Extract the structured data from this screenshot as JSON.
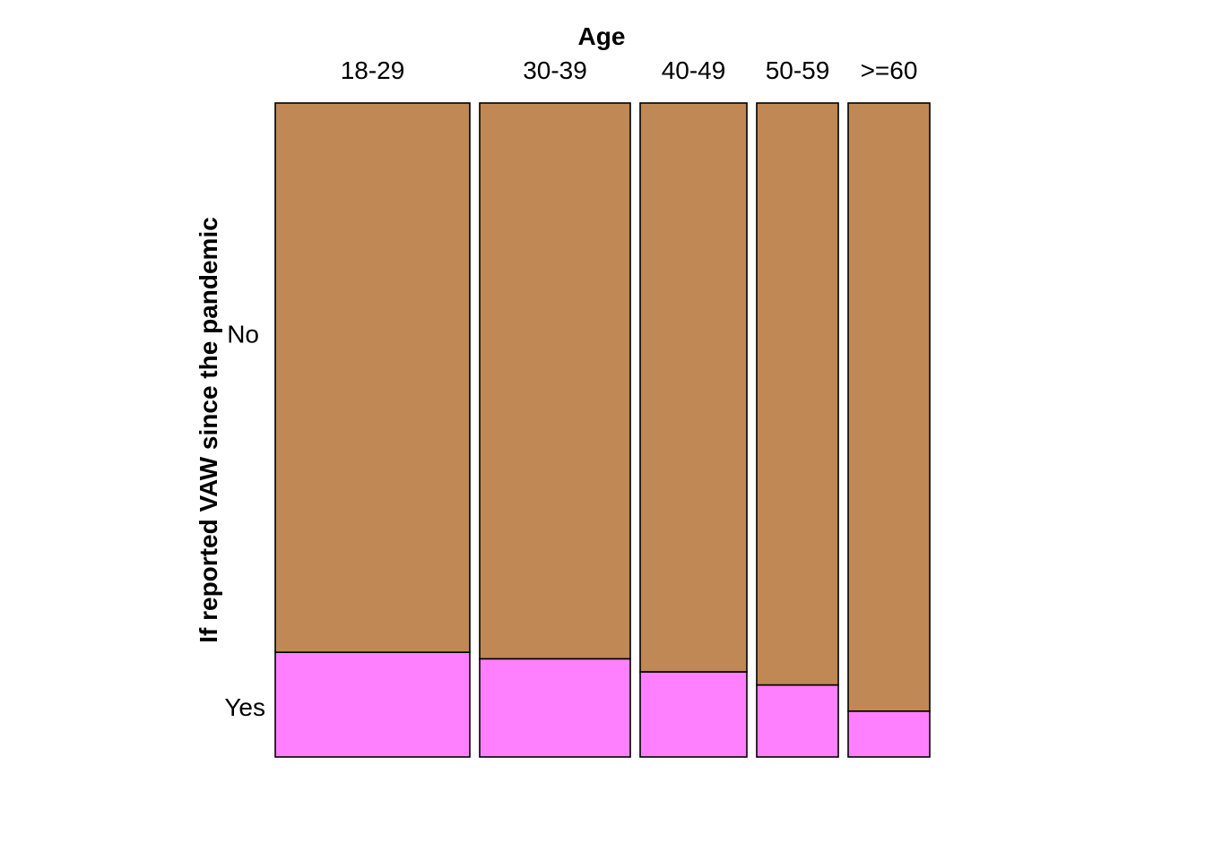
{
  "chart_data": {
    "type": "mosaic",
    "title": "",
    "xlabel": "Age",
    "ylabel": "If reported VAW since the pandemic",
    "categories": [
      "18-29",
      "30-39",
      "40-49",
      "50-59",
      ">=60"
    ],
    "column_share": [
      0.31,
      0.24,
      0.17,
      0.13,
      0.13
    ],
    "response_levels": [
      "No",
      "Yes"
    ],
    "series": [
      {
        "name": "No",
        "values": [
          0.84,
          0.85,
          0.87,
          0.89,
          0.93
        ]
      },
      {
        "name": "Yes",
        "values": [
          0.16,
          0.15,
          0.13,
          0.11,
          0.07
        ]
      }
    ],
    "colors": {
      "No": "#c08854",
      "Yes": "#ff80ff"
    },
    "legend": "none",
    "grid": false
  }
}
